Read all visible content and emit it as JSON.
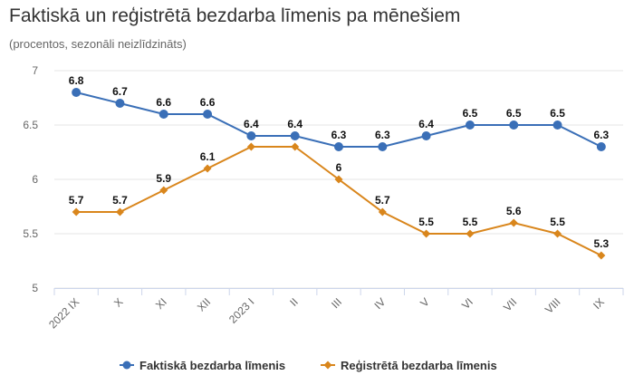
{
  "chart_data": {
    "type": "line",
    "title": "Faktiskā un reģistrētā bezdarba līmenis pa mēnešiem",
    "subtitle": "(procentos, sezonāli neizlīdzināts)",
    "categories": [
      "2022 IX",
      "X",
      "XI",
      "XII",
      "2023 I",
      "II",
      "III",
      "IV",
      "V",
      "VI",
      "VII",
      "VIII",
      "IX"
    ],
    "ylim": [
      5,
      7
    ],
    "yticks": [
      5,
      5.5,
      6,
      6.5,
      7
    ],
    "grid": true,
    "legend_position": "bottom",
    "series": [
      {
        "name": "Faktiskā bezdarba līmenis",
        "color": "#3a6fb7",
        "marker": "circle",
        "values": [
          6.8,
          6.7,
          6.6,
          6.6,
          6.4,
          6.4,
          6.3,
          6.3,
          6.4,
          6.5,
          6.5,
          6.5,
          6.3
        ],
        "labels": [
          "6.8",
          "6.7",
          "6.6",
          "6.6",
          "6.4",
          "6.4",
          "6.3",
          "6.3",
          "6.4",
          "6.5",
          "6.5",
          "6.5",
          "6.3"
        ]
      },
      {
        "name": "Reģistrētā bezdarba līmenis",
        "color": "#d9861c",
        "marker": "diamond",
        "values": [
          5.7,
          5.7,
          5.9,
          6.1,
          6.3,
          6.3,
          6.0,
          5.7,
          5.5,
          5.5,
          5.6,
          5.5,
          5.3
        ],
        "labels": [
          "5.7",
          "5.7",
          "5.9",
          "6.1",
          "",
          "",
          "6",
          "5.7",
          "5.5",
          "5.5",
          "5.6",
          "5.5",
          "5.3"
        ]
      }
    ]
  }
}
